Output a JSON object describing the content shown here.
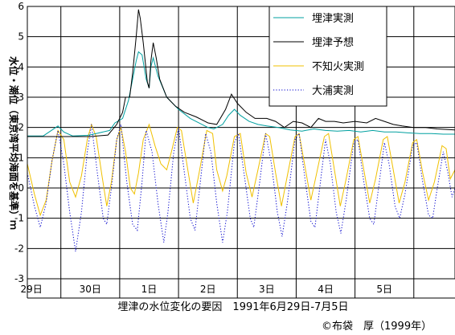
{
  "chart_data": {
    "type": "line",
    "title": "",
    "xlabel": "埋津の水位変化の要因　1991年6月29日-7月5日",
    "ylabel": "水位・潮位（東京湾平均海面を基準）ｍ",
    "credit": "©布袋　厚（1999年）",
    "ylim": [
      -3,
      6
    ],
    "yticks": [
      "-3",
      "-2",
      "-1",
      "0",
      "1",
      "2",
      "3",
      "4",
      "5",
      "6"
    ],
    "x_unit": "day index (0 = 6/29 00:00)",
    "xlim": [
      -0.07,
      7.2
    ],
    "x_tick_labels": [
      "29日",
      "30日",
      "1日",
      "2日",
      "3日",
      "4日",
      "5日"
    ],
    "x_tick_positions": [
      0,
      1,
      2,
      3,
      4,
      5,
      6
    ],
    "grid": true,
    "legend_position": "top-right",
    "series": [
      {
        "name": "埋津実測",
        "color": "#00a0a0",
        "line_style": "solid",
        "points": [
          [
            -0.07,
            1.72
          ],
          [
            0.2,
            1.72
          ],
          [
            0.36,
            1.93
          ],
          [
            0.45,
            2.05
          ],
          [
            0.55,
            1.85
          ],
          [
            0.7,
            1.72
          ],
          [
            0.95,
            1.74
          ],
          [
            1.1,
            1.8
          ],
          [
            1.33,
            1.9
          ],
          [
            1.42,
            2.15
          ],
          [
            1.55,
            2.3
          ],
          [
            1.65,
            2.9
          ],
          [
            1.72,
            3.6
          ],
          [
            1.78,
            4.2
          ],
          [
            1.82,
            4.5
          ],
          [
            1.88,
            4.4
          ],
          [
            1.95,
            3.6
          ],
          [
            2.0,
            3.3
          ],
          [
            2.03,
            4.0
          ],
          [
            2.07,
            4.3
          ],
          [
            2.15,
            3.7
          ],
          [
            2.3,
            3.0
          ],
          [
            2.5,
            2.6
          ],
          [
            2.7,
            2.3
          ],
          [
            2.9,
            2.1
          ],
          [
            3.0,
            2.0
          ],
          [
            3.1,
            1.95
          ],
          [
            3.25,
            2.1
          ],
          [
            3.35,
            2.4
          ],
          [
            3.45,
            2.6
          ],
          [
            3.55,
            2.4
          ],
          [
            3.7,
            2.2
          ],
          [
            3.85,
            2.1
          ],
          [
            4.0,
            2.05
          ],
          [
            4.2,
            2.0
          ],
          [
            4.4,
            1.92
          ],
          [
            4.6,
            1.88
          ],
          [
            4.8,
            1.95
          ],
          [
            5.0,
            1.9
          ],
          [
            5.2,
            1.88
          ],
          [
            5.4,
            1.9
          ],
          [
            5.6,
            1.85
          ],
          [
            5.8,
            1.9
          ],
          [
            6.0,
            1.85
          ],
          [
            6.2,
            1.85
          ],
          [
            6.4,
            1.82
          ],
          [
            6.6,
            1.8
          ],
          [
            6.8,
            1.8
          ],
          [
            7.0,
            1.78
          ],
          [
            7.2,
            1.78
          ]
        ]
      },
      {
        "name": "埋津予想",
        "color": "#000000",
        "line_style": "solid",
        "points": [
          [
            -0.07,
            1.7
          ],
          [
            0.3,
            1.7
          ],
          [
            0.6,
            1.7
          ],
          [
            1.0,
            1.7
          ],
          [
            1.3,
            1.75
          ],
          [
            1.45,
            2.1
          ],
          [
            1.55,
            2.5
          ],
          [
            1.6,
            3.0
          ],
          [
            1.67,
            3.0
          ],
          [
            1.72,
            3.8
          ],
          [
            1.78,
            5.0
          ],
          [
            1.82,
            5.9
          ],
          [
            1.85,
            5.6
          ],
          [
            1.9,
            4.8
          ],
          [
            1.97,
            3.5
          ],
          [
            2.0,
            3.3
          ],
          [
            2.03,
            4.2
          ],
          [
            2.07,
            4.8
          ],
          [
            2.12,
            4.3
          ],
          [
            2.18,
            3.6
          ],
          [
            2.3,
            3.0
          ],
          [
            2.45,
            2.7
          ],
          [
            2.6,
            2.5
          ],
          [
            2.8,
            2.35
          ],
          [
            3.0,
            2.15
          ],
          [
            3.15,
            2.1
          ],
          [
            3.3,
            2.6
          ],
          [
            3.4,
            3.1
          ],
          [
            3.5,
            2.8
          ],
          [
            3.65,
            2.5
          ],
          [
            3.8,
            2.3
          ],
          [
            4.0,
            2.3
          ],
          [
            4.15,
            2.2
          ],
          [
            4.3,
            2.0
          ],
          [
            4.45,
            2.2
          ],
          [
            4.6,
            2.15
          ],
          [
            4.75,
            2.0
          ],
          [
            4.88,
            2.3
          ],
          [
            5.0,
            2.2
          ],
          [
            5.15,
            2.2
          ],
          [
            5.3,
            2.15
          ],
          [
            5.5,
            2.2
          ],
          [
            5.7,
            2.15
          ],
          [
            5.85,
            2.3
          ],
          [
            6.0,
            2.2
          ],
          [
            6.15,
            2.1
          ],
          [
            6.3,
            2.05
          ],
          [
            6.5,
            2.0
          ],
          [
            6.7,
            2.0
          ],
          [
            6.9,
            1.95
          ],
          [
            7.2,
            1.92
          ]
        ]
      },
      {
        "name": "不知火実測",
        "color": "#f0c000",
        "line_style": "solid",
        "points": [
          [
            -0.07,
            0.8
          ],
          [
            0.05,
            -0.2
          ],
          [
            0.15,
            -0.9
          ],
          [
            0.25,
            -0.4
          ],
          [
            0.35,
            0.9
          ],
          [
            0.45,
            1.9
          ],
          [
            0.55,
            1.6
          ],
          [
            0.65,
            0.2
          ],
          [
            0.75,
            -0.3
          ],
          [
            0.85,
            0.4
          ],
          [
            0.95,
            1.6
          ],
          [
            1.02,
            2.1
          ],
          [
            1.1,
            1.7
          ],
          [
            1.2,
            0.4
          ],
          [
            1.28,
            -0.6
          ],
          [
            1.36,
            0.2
          ],
          [
            1.45,
            1.6
          ],
          [
            1.52,
            2.0
          ],
          [
            1.6,
            1.2
          ],
          [
            1.68,
            0.0
          ],
          [
            1.75,
            -0.2
          ],
          [
            1.82,
            0.5
          ],
          [
            1.9,
            1.6
          ],
          [
            2.0,
            2.1
          ],
          [
            2.1,
            1.4
          ],
          [
            2.2,
            0.8
          ],
          [
            2.3,
            0.6
          ],
          [
            2.38,
            1.2
          ],
          [
            2.48,
            2.0
          ],
          [
            2.55,
            1.9
          ],
          [
            2.65,
            0.7
          ],
          [
            2.75,
            -0.5
          ],
          [
            2.85,
            0.5
          ],
          [
            2.98,
            1.9
          ],
          [
            3.08,
            1.8
          ],
          [
            3.15,
            0.6
          ],
          [
            3.25,
            -0.1
          ],
          [
            3.32,
            0.4
          ],
          [
            3.45,
            1.7
          ],
          [
            3.55,
            1.8
          ],
          [
            3.65,
            0.5
          ],
          [
            3.75,
            -0.3
          ],
          [
            3.85,
            0.6
          ],
          [
            3.98,
            1.8
          ],
          [
            4.05,
            1.7
          ],
          [
            4.15,
            0.5
          ],
          [
            4.25,
            -0.6
          ],
          [
            4.35,
            0.4
          ],
          [
            4.48,
            1.7
          ],
          [
            4.55,
            1.8
          ],
          [
            4.65,
            0.7
          ],
          [
            4.75,
            -0.4
          ],
          [
            4.85,
            0.5
          ],
          [
            4.98,
            1.7
          ],
          [
            5.05,
            1.8
          ],
          [
            5.15,
            0.6
          ],
          [
            5.25,
            -0.6
          ],
          [
            5.35,
            0.3
          ],
          [
            5.48,
            1.6
          ],
          [
            5.55,
            1.7
          ],
          [
            5.65,
            0.6
          ],
          [
            5.75,
            -0.5
          ],
          [
            5.85,
            0.3
          ],
          [
            5.98,
            1.6
          ],
          [
            6.05,
            1.7
          ],
          [
            6.15,
            0.6
          ],
          [
            6.25,
            -0.5
          ],
          [
            6.35,
            0.2
          ],
          [
            6.48,
            1.5
          ],
          [
            6.55,
            1.6
          ],
          [
            6.65,
            0.5
          ],
          [
            6.75,
            -0.4
          ],
          [
            6.85,
            0.2
          ],
          [
            6.98,
            1.4
          ],
          [
            7.05,
            1.3
          ],
          [
            7.12,
            0.3
          ],
          [
            7.2,
            0.6
          ]
        ]
      },
      {
        "name": "大浦実測",
        "color": "#0000cc",
        "line_style": "dotted",
        "points": [
          [
            -0.07,
            0.5
          ],
          [
            0.05,
            -0.6
          ],
          [
            0.15,
            -1.3
          ],
          [
            0.25,
            -0.5
          ],
          [
            0.35,
            0.9
          ],
          [
            0.45,
            1.9
          ],
          [
            0.55,
            0.8
          ],
          [
            0.65,
            -0.8
          ],
          [
            0.75,
            -2.1
          ],
          [
            0.85,
            -0.8
          ],
          [
            0.95,
            1.2
          ],
          [
            1.02,
            2.1
          ],
          [
            1.12,
            0.5
          ],
          [
            1.22,
            -1.0
          ],
          [
            1.28,
            -1.2
          ],
          [
            1.36,
            0.0
          ],
          [
            1.45,
            1.6
          ],
          [
            1.52,
            2.1
          ],
          [
            1.62,
            0.2
          ],
          [
            1.72,
            -1.2
          ],
          [
            1.8,
            -1.4
          ],
          [
            1.88,
            0.2
          ],
          [
            1.95,
            1.9
          ],
          [
            2.05,
            1.2
          ],
          [
            2.15,
            -0.5
          ],
          [
            2.25,
            -1.8
          ],
          [
            2.32,
            -0.8
          ],
          [
            2.42,
            1.2
          ],
          [
            2.5,
            2.0
          ],
          [
            2.6,
            0.5
          ],
          [
            2.7,
            -1.0
          ],
          [
            2.78,
            -1.4
          ],
          [
            2.86,
            0.0
          ],
          [
            2.96,
            1.8
          ],
          [
            3.05,
            1.2
          ],
          [
            3.15,
            -0.5
          ],
          [
            3.25,
            -1.8
          ],
          [
            3.33,
            -0.8
          ],
          [
            3.45,
            1.5
          ],
          [
            3.52,
            1.8
          ],
          [
            3.62,
            0.4
          ],
          [
            3.72,
            -1.0
          ],
          [
            3.78,
            -1.3
          ],
          [
            3.88,
            0.2
          ],
          [
            3.98,
            1.8
          ],
          [
            4.08,
            0.8
          ],
          [
            4.18,
            -0.8
          ],
          [
            4.26,
            -1.6
          ],
          [
            4.35,
            -0.5
          ],
          [
            4.48,
            1.6
          ],
          [
            4.55,
            1.8
          ],
          [
            4.65,
            0.3
          ],
          [
            4.75,
            -1.1
          ],
          [
            4.82,
            -1.3
          ],
          [
            4.9,
            0.0
          ],
          [
            5.0,
            1.6
          ],
          [
            5.08,
            0.8
          ],
          [
            5.18,
            -0.8
          ],
          [
            5.26,
            -1.5
          ],
          [
            5.35,
            -0.4
          ],
          [
            5.48,
            1.5
          ],
          [
            5.55,
            1.6
          ],
          [
            5.65,
            0.2
          ],
          [
            5.75,
            -1.0
          ],
          [
            5.82,
            -1.2
          ],
          [
            5.9,
            0.0
          ],
          [
            6.0,
            1.5
          ],
          [
            6.08,
            0.8
          ],
          [
            6.18,
            -0.6
          ],
          [
            6.26,
            -1.0
          ],
          [
            6.35,
            -0.2
          ],
          [
            6.48,
            1.4
          ],
          [
            6.55,
            1.5
          ],
          [
            6.65,
            0.2
          ],
          [
            6.75,
            -0.9
          ],
          [
            6.82,
            -1.0
          ],
          [
            6.9,
            0.0
          ],
          [
            7.0,
            1.2
          ],
          [
            7.08,
            0.5
          ],
          [
            7.15,
            -0.3
          ],
          [
            7.2,
            0.0
          ]
        ]
      }
    ]
  }
}
